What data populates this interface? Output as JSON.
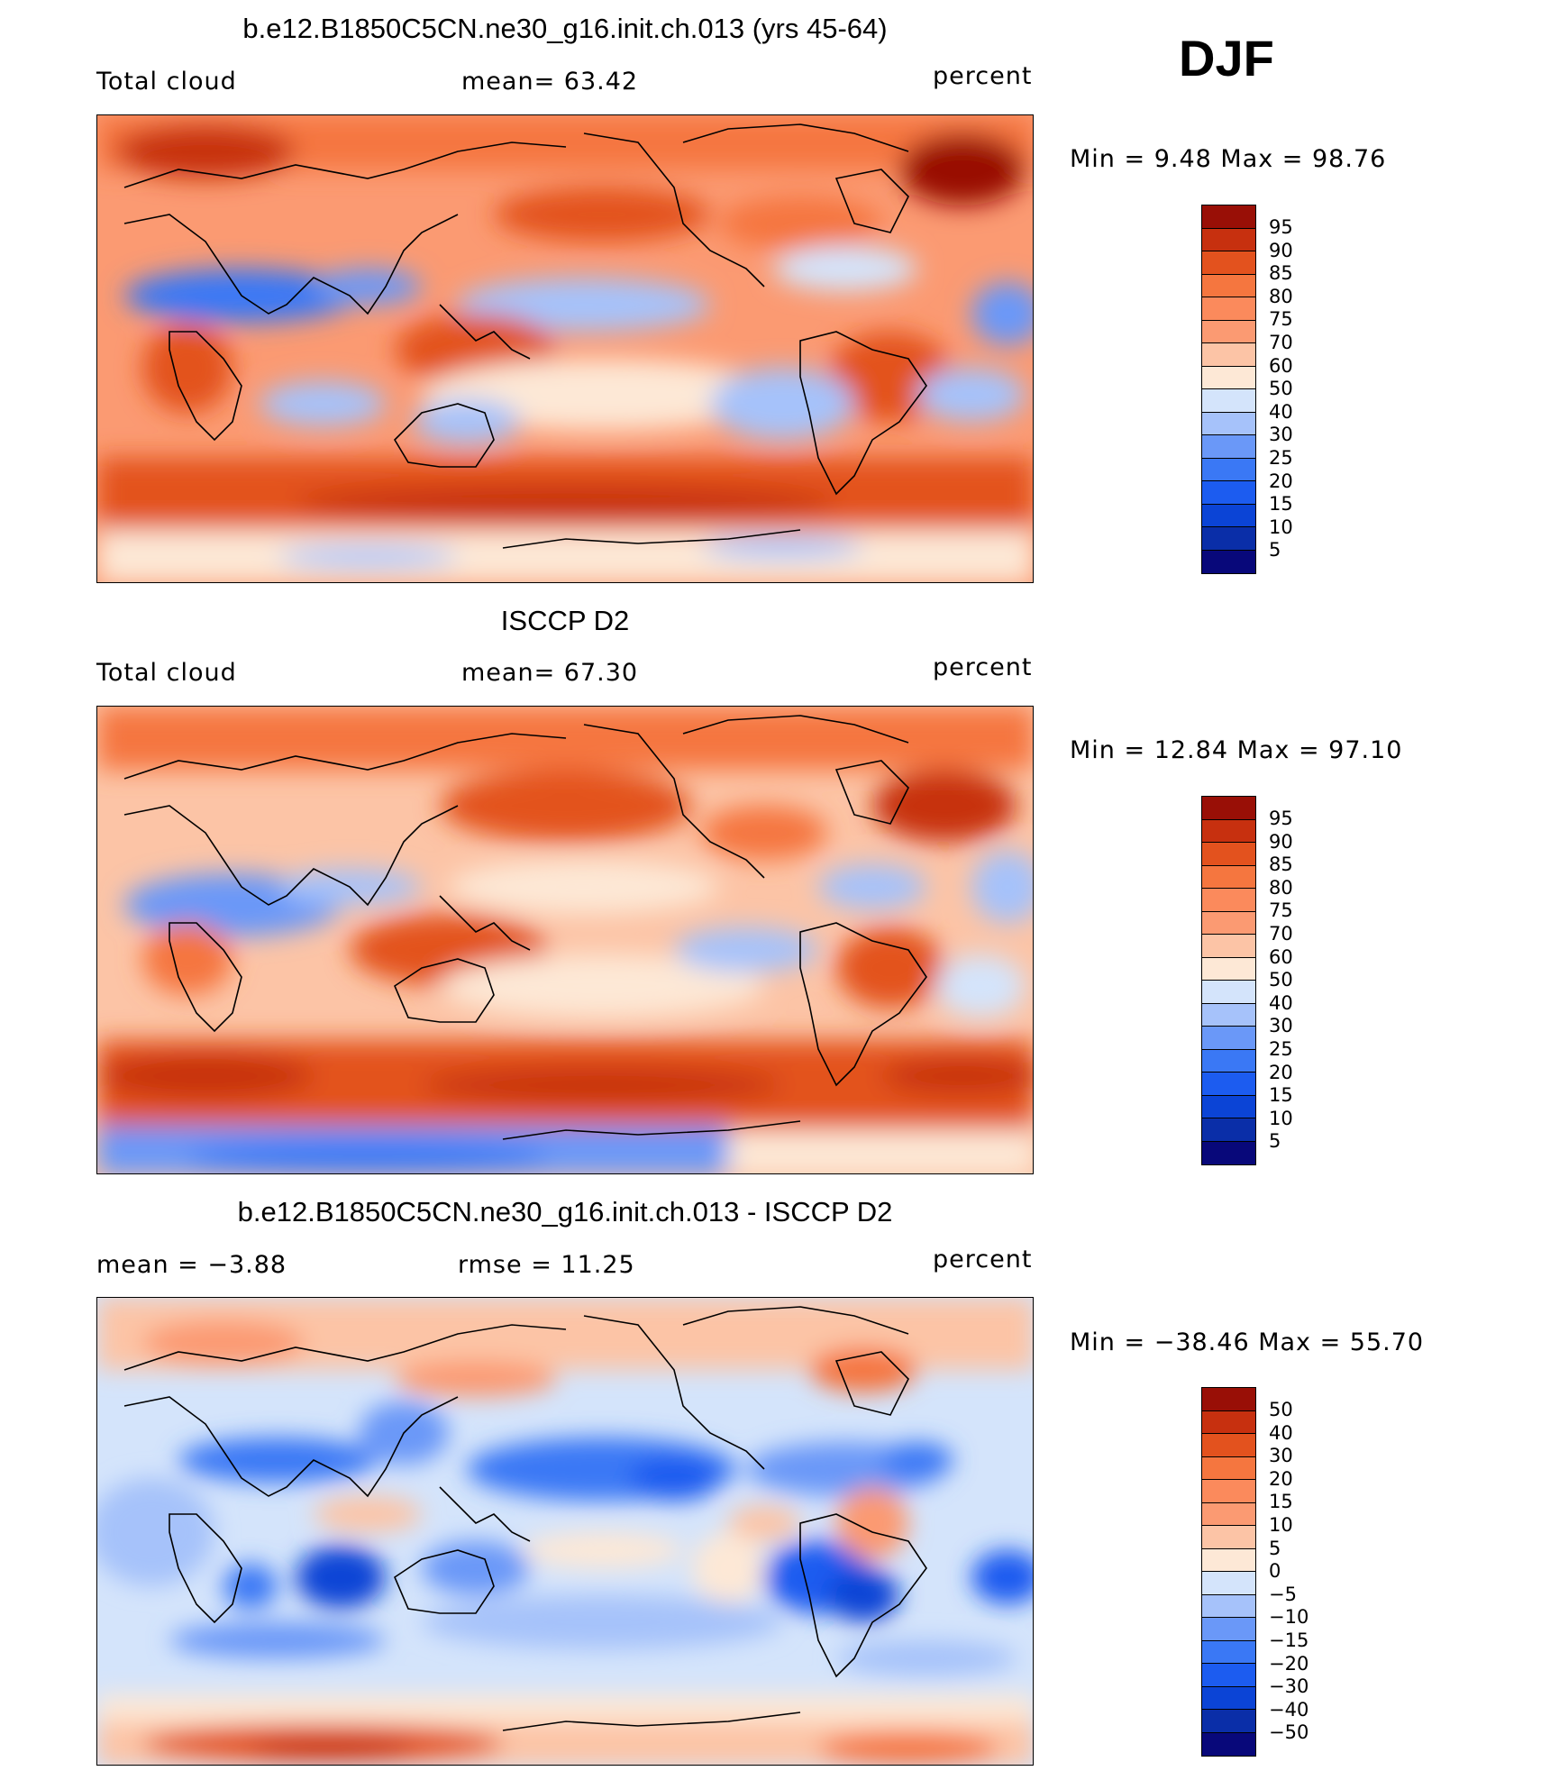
{
  "season": "DJF",
  "palette_model": [
    "#08087a",
    "#0a2ea8",
    "#0b44d6",
    "#1c5cf0",
    "#3a78f5",
    "#6a98f8",
    "#a6c2fa",
    "#d4e4fb",
    "#fde8d6",
    "#fcc4a6",
    "#fb9a72",
    "#f5763f",
    "#e3521e",
    "#c7300f",
    "#990f06"
  ],
  "palette_diff": [
    "#08087a",
    "#0a2ea8",
    "#0b44d6",
    "#1c5cf0",
    "#3a78f5",
    "#6a98f8",
    "#a6c2fa",
    "#d4e4fb",
    "#fde8d6",
    "#fcc4a6",
    "#fb9a72",
    "#f5763f",
    "#e3521e",
    "#c7300f",
    "#990f06"
  ],
  "panels": [
    {
      "title": "b.e12.B1850C5CN.ne30_g16.init.ch.013 (yrs 45-64)",
      "left_label": "Total cloud",
      "center_label": "mean=   63.42",
      "units": "percent",
      "minmax": "Min =    9.48  Max =   98.76",
      "levels": [
        "95",
        "90",
        "85",
        "80",
        "75",
        "70",
        "60",
        "50",
        "40",
        "30",
        "25",
        "20",
        "15",
        "10",
        "5"
      ]
    },
    {
      "title": "ISCCP D2",
      "left_label": "Total cloud",
      "center_label": "mean=   67.30",
      "units": "percent",
      "minmax": "Min =   12.84  Max =   97.10",
      "levels": [
        "95",
        "90",
        "85",
        "80",
        "75",
        "70",
        "60",
        "50",
        "40",
        "30",
        "25",
        "20",
        "15",
        "10",
        "5"
      ]
    },
    {
      "title": "b.e12.B1850C5CN.ne30_g16.init.ch.013 - ISCCP D2",
      "left_label": "mean =   −3.88",
      "center_label": "rmse =   11.25",
      "units": "percent",
      "minmax": "Min = −38.46  Max =   55.70",
      "levels": [
        "50",
        "40",
        "30",
        "20",
        "15",
        "10",
        "5",
        "0",
        "−5",
        "−10",
        "−15",
        "−20",
        "−30",
        "−40",
        "−50"
      ]
    }
  ]
}
